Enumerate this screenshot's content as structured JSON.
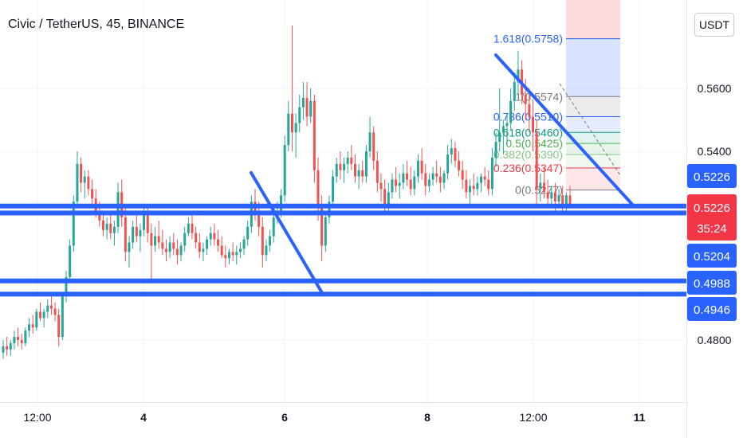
{
  "header": {
    "title": "Civic / TetherUS, 45, BINANCE",
    "currency_button": "USDT"
  },
  "colors": {
    "bull": "#26a69a",
    "bear": "#ef5350",
    "drawing": "#2962ff",
    "price_tag": "#f23645"
  },
  "chart_data": {
    "type": "candlestick",
    "title": "Civic / TetherUS, 45, BINANCE",
    "y_ticks": [
      0.56,
      0.54,
      0.48
    ],
    "y_tick_labels": [
      "0.5600",
      "0.5400",
      "0.4800"
    ],
    "x_ticks": [
      {
        "label": "12:00",
        "bold": false
      },
      {
        "label": "4",
        "bold": true
      },
      {
        "label": "6",
        "bold": true
      },
      {
        "label": "8",
        "bold": true
      },
      {
        "label": "12:00",
        "bold": false
      },
      {
        "label": "11",
        "bold": true
      }
    ],
    "current_price": {
      "label": "0.5226",
      "countdown": "35:24"
    },
    "price_tags": [
      "0.5226",
      "0.5204",
      "0.4988",
      "0.4946"
    ],
    "fib_levels": [
      {
        "label": "1.618(0.5758)",
        "value": 0.5758,
        "color": "#2962ff"
      },
      {
        "label": "1(0.5574)",
        "value": 0.5574,
        "color": "#787b86"
      },
      {
        "label": "0.786(0.5510)",
        "value": 0.551,
        "color": "#2962ff"
      },
      {
        "label": "0.618(0.5460)",
        "value": 0.546,
        "color": "#089981"
      },
      {
        "label": "0.5(0.5425)",
        "value": 0.5425,
        "color": "#4caf50"
      },
      {
        "label": "0.382(0.5390)",
        "value": 0.539,
        "color": "#81c784"
      },
      {
        "label": "0.236(0.5347)",
        "value": 0.5347,
        "color": "#f23645"
      },
      {
        "label": "0(0.5277)",
        "value": 0.5277,
        "color": "#787b86"
      }
    ],
    "horizontal_lines": [
      0.5226,
      0.5204,
      0.4988,
      0.4946
    ],
    "trend_lines": [
      {
        "from": [
          0.315,
          0.5332
        ],
        "to": [
          0.405,
          0.4946
        ]
      },
      {
        "from": [
          0.622,
          0.5706
        ],
        "to": [
          0.795,
          0.5226
        ]
      }
    ],
    "candles": [
      [
        0.476,
        0.48,
        0.474,
        0.478
      ],
      [
        0.478,
        0.481,
        0.475,
        0.477
      ],
      [
        0.477,
        0.48,
        0.475,
        0.479
      ],
      [
        0.479,
        0.483,
        0.477,
        0.481
      ],
      [
        0.481,
        0.484,
        0.478,
        0.48
      ],
      [
        0.48,
        0.482,
        0.477,
        0.479
      ],
      [
        0.479,
        0.484,
        0.478,
        0.483
      ],
      [
        0.483,
        0.487,
        0.481,
        0.485
      ],
      [
        0.485,
        0.488,
        0.482,
        0.484
      ],
      [
        0.484,
        0.49,
        0.483,
        0.489
      ],
      [
        0.489,
        0.492,
        0.486,
        0.487
      ],
      [
        0.487,
        0.49,
        0.484,
        0.489
      ],
      [
        0.489,
        0.493,
        0.487,
        0.491
      ],
      [
        0.491,
        0.494,
        0.488,
        0.49
      ],
      [
        0.49,
        0.492,
        0.486,
        0.488
      ],
      [
        0.488,
        0.49,
        0.478,
        0.481
      ],
      [
        0.481,
        0.495,
        0.48,
        0.494
      ],
      [
        0.494,
        0.502,
        0.492,
        0.5
      ],
      [
        0.5,
        0.512,
        0.499,
        0.51
      ],
      [
        0.51,
        0.526,
        0.508,
        0.524
      ],
      [
        0.524,
        0.54,
        0.522,
        0.536
      ],
      [
        0.536,
        0.538,
        0.527,
        0.53
      ],
      [
        0.53,
        0.534,
        0.525,
        0.532
      ],
      [
        0.532,
        0.534,
        0.526,
        0.528
      ],
      [
        0.528,
        0.531,
        0.522,
        0.525
      ],
      [
        0.525,
        0.528,
        0.519,
        0.521
      ],
      [
        0.521,
        0.524,
        0.516,
        0.518
      ],
      [
        0.518,
        0.521,
        0.513,
        0.515
      ],
      [
        0.515,
        0.519,
        0.512,
        0.517
      ],
      [
        0.517,
        0.52,
        0.512,
        0.514
      ],
      [
        0.514,
        0.518,
        0.51,
        0.516
      ],
      [
        0.516,
        0.53,
        0.514,
        0.527
      ],
      [
        0.527,
        0.531,
        0.516,
        0.519
      ],
      [
        0.519,
        0.522,
        0.505,
        0.508
      ],
      [
        0.508,
        0.513,
        0.503,
        0.511
      ],
      [
        0.511,
        0.518,
        0.509,
        0.516
      ],
      [
        0.516,
        0.52,
        0.511,
        0.513
      ],
      [
        0.513,
        0.517,
        0.508,
        0.515
      ],
      [
        0.515,
        0.522,
        0.513,
        0.52
      ],
      [
        0.52,
        0.523,
        0.511,
        0.514
      ],
      [
        0.514,
        0.517,
        0.498,
        0.51
      ],
      [
        0.51,
        0.516,
        0.508,
        0.513
      ],
      [
        0.513,
        0.518,
        0.509,
        0.511
      ],
      [
        0.511,
        0.515,
        0.507,
        0.509
      ],
      [
        0.509,
        0.512,
        0.505,
        0.508
      ],
      [
        0.508,
        0.513,
        0.506,
        0.511
      ],
      [
        0.511,
        0.514,
        0.507,
        0.509
      ],
      [
        0.509,
        0.512,
        0.504,
        0.507
      ],
      [
        0.507,
        0.511,
        0.505,
        0.51
      ],
      [
        0.51,
        0.516,
        0.508,
        0.514
      ],
      [
        0.514,
        0.519,
        0.513,
        0.517
      ],
      [
        0.517,
        0.52,
        0.512,
        0.514
      ],
      [
        0.514,
        0.516,
        0.509,
        0.511
      ],
      [
        0.511,
        0.514,
        0.506,
        0.508
      ],
      [
        0.508,
        0.511,
        0.505,
        0.509
      ],
      [
        0.509,
        0.513,
        0.507,
        0.512
      ],
      [
        0.512,
        0.516,
        0.51,
        0.514
      ],
      [
        0.514,
        0.517,
        0.51,
        0.512
      ],
      [
        0.512,
        0.515,
        0.508,
        0.51
      ],
      [
        0.51,
        0.513,
        0.506,
        0.507
      ],
      [
        0.507,
        0.51,
        0.503,
        0.506
      ],
      [
        0.506,
        0.509,
        0.504,
        0.508
      ],
      [
        0.508,
        0.511,
        0.505,
        0.507
      ],
      [
        0.507,
        0.51,
        0.504,
        0.508
      ],
      [
        0.508,
        0.511,
        0.506,
        0.509
      ],
      [
        0.509,
        0.513,
        0.507,
        0.512
      ],
      [
        0.512,
        0.518,
        0.51,
        0.516
      ],
      [
        0.516,
        0.526,
        0.514,
        0.524
      ],
      [
        0.524,
        0.528,
        0.518,
        0.521
      ],
      [
        0.521,
        0.524,
        0.513,
        0.516
      ],
      [
        0.516,
        0.519,
        0.503,
        0.507
      ],
      [
        0.507,
        0.512,
        0.505,
        0.51
      ],
      [
        0.51,
        0.515,
        0.508,
        0.513
      ],
      [
        0.513,
        0.521,
        0.511,
        0.519
      ],
      [
        0.519,
        0.524,
        0.517,
        0.521
      ],
      [
        0.521,
        0.528,
        0.519,
        0.526
      ],
      [
        0.526,
        0.545,
        0.524,
        0.542
      ],
      [
        0.542,
        0.556,
        0.54,
        0.552
      ],
      [
        0.552,
        0.58,
        0.54,
        0.546
      ],
      [
        0.546,
        0.552,
        0.538,
        0.549
      ],
      [
        0.549,
        0.558,
        0.546,
        0.554
      ],
      [
        0.554,
        0.562,
        0.55,
        0.557
      ],
      [
        0.557,
        0.562,
        0.548,
        0.551
      ],
      [
        0.551,
        0.56,
        0.549,
        0.556
      ],
      [
        0.556,
        0.558,
        0.53,
        0.534
      ],
      [
        0.534,
        0.538,
        0.518,
        0.522
      ],
      [
        0.522,
        0.526,
        0.505,
        0.51
      ],
      [
        0.51,
        0.521,
        0.508,
        0.519
      ],
      [
        0.519,
        0.526,
        0.517,
        0.524
      ],
      [
        0.524,
        0.534,
        0.522,
        0.532
      ],
      [
        0.532,
        0.538,
        0.53,
        0.536
      ],
      [
        0.536,
        0.54,
        0.531,
        0.534
      ],
      [
        0.534,
        0.538,
        0.53,
        0.536
      ],
      [
        0.536,
        0.54,
        0.533,
        0.538
      ],
      [
        0.538,
        0.542,
        0.534,
        0.536
      ],
      [
        0.536,
        0.539,
        0.53,
        0.532
      ],
      [
        0.532,
        0.536,
        0.528,
        0.534
      ],
      [
        0.534,
        0.537,
        0.53,
        0.532
      ],
      [
        0.532,
        0.542,
        0.53,
        0.54
      ],
      [
        0.54,
        0.551,
        0.538,
        0.546
      ],
      [
        0.546,
        0.548,
        0.534,
        0.537
      ],
      [
        0.537,
        0.54,
        0.527,
        0.53
      ],
      [
        0.53,
        0.533,
        0.524,
        0.528
      ],
      [
        0.528,
        0.531,
        0.52,
        0.523
      ],
      [
        0.523,
        0.53,
        0.521,
        0.527
      ],
      [
        0.527,
        0.533,
        0.525,
        0.531
      ],
      [
        0.531,
        0.535,
        0.527,
        0.529
      ],
      [
        0.529,
        0.533,
        0.525,
        0.53
      ],
      [
        0.53,
        0.536,
        0.528,
        0.533
      ],
      [
        0.533,
        0.537,
        0.529,
        0.531
      ],
      [
        0.531,
        0.535,
        0.526,
        0.528
      ],
      [
        0.528,
        0.534,
        0.526,
        0.532
      ],
      [
        0.532,
        0.539,
        0.53,
        0.537
      ],
      [
        0.537,
        0.541,
        0.531,
        0.533
      ],
      [
        0.533,
        0.536,
        0.526,
        0.529
      ],
      [
        0.529,
        0.533,
        0.527,
        0.531
      ],
      [
        0.531,
        0.535,
        0.529,
        0.533
      ],
      [
        0.533,
        0.537,
        0.53,
        0.532
      ],
      [
        0.532,
        0.535,
        0.527,
        0.53
      ],
      [
        0.53,
        0.534,
        0.528,
        0.533
      ],
      [
        0.533,
        0.542,
        0.531,
        0.539
      ],
      [
        0.539,
        0.544,
        0.536,
        0.541
      ],
      [
        0.541,
        0.543,
        0.535,
        0.537
      ],
      [
        0.537,
        0.54,
        0.532,
        0.534
      ],
      [
        0.534,
        0.537,
        0.528,
        0.531
      ],
      [
        0.531,
        0.534,
        0.525,
        0.527
      ],
      [
        0.527,
        0.531,
        0.523,
        0.529
      ],
      [
        0.529,
        0.533,
        0.526,
        0.528
      ],
      [
        0.528,
        0.532,
        0.526,
        0.53
      ],
      [
        0.53,
        0.533,
        0.527,
        0.532
      ],
      [
        0.532,
        0.535,
        0.529,
        0.531
      ],
      [
        0.531,
        0.534,
        0.526,
        0.528
      ],
      [
        0.528,
        0.541,
        0.526,
        0.538
      ],
      [
        0.538,
        0.546,
        0.535,
        0.543
      ],
      [
        0.543,
        0.56,
        0.54,
        0.546
      ],
      [
        0.546,
        0.55,
        0.539,
        0.548
      ],
      [
        0.548,
        0.552,
        0.542,
        0.549
      ],
      [
        0.549,
        0.56,
        0.547,
        0.556
      ],
      [
        0.556,
        0.565,
        0.553,
        0.562
      ],
      [
        0.562,
        0.572,
        0.558,
        0.566
      ],
      [
        0.566,
        0.569,
        0.555,
        0.558
      ],
      [
        0.558,
        0.563,
        0.55,
        0.555
      ],
      [
        0.555,
        0.56,
        0.546,
        0.551
      ],
      [
        0.551,
        0.556,
        0.54,
        0.546
      ],
      [
        0.546,
        0.55,
        0.522,
        0.528
      ],
      [
        0.528,
        0.533,
        0.524,
        0.53
      ],
      [
        0.53,
        0.535,
        0.525,
        0.527
      ],
      [
        0.527,
        0.531,
        0.522,
        0.525
      ],
      [
        0.525,
        0.529,
        0.523,
        0.527
      ],
      [
        0.527,
        0.53,
        0.52,
        0.524
      ],
      [
        0.524,
        0.528,
        0.522,
        0.526
      ],
      [
        0.526,
        0.529,
        0.521,
        0.523
      ],
      [
        0.523,
        0.527,
        0.521,
        0.526
      ],
      [
        0.526,
        0.529,
        0.522,
        0.522
      ]
    ]
  }
}
